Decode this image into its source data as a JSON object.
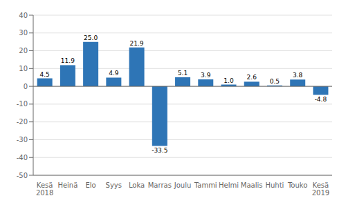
{
  "chart_data": {
    "type": "bar",
    "categories": [
      "Kesä\n2018",
      "Heinä",
      "Elo",
      "Syys",
      "Loka",
      "Marras",
      "Joulu",
      "Tammi",
      "Helmi",
      "Maalis",
      "Huhti",
      "Touko",
      "Kesä\n2019"
    ],
    "values": [
      4.5,
      11.9,
      25.0,
      4.9,
      21.9,
      -33.5,
      5.1,
      3.9,
      1.0,
      2.6,
      0.5,
      3.8,
      -4.8
    ],
    "value_labels": [
      "4.5",
      "11.9",
      "25.0",
      "4.9",
      "21.9",
      "-33.5",
      "5.1",
      "3.9",
      "1.0",
      "2.6",
      "0.5",
      "3.8",
      "-4.8"
    ],
    "color": "#2E75B6",
    "ylim": [
      -50,
      40
    ],
    "yticks": [
      -50,
      -40,
      -30,
      -20,
      -10,
      0,
      10,
      20,
      30,
      40
    ],
    "grid": true,
    "data_labels": true
  }
}
